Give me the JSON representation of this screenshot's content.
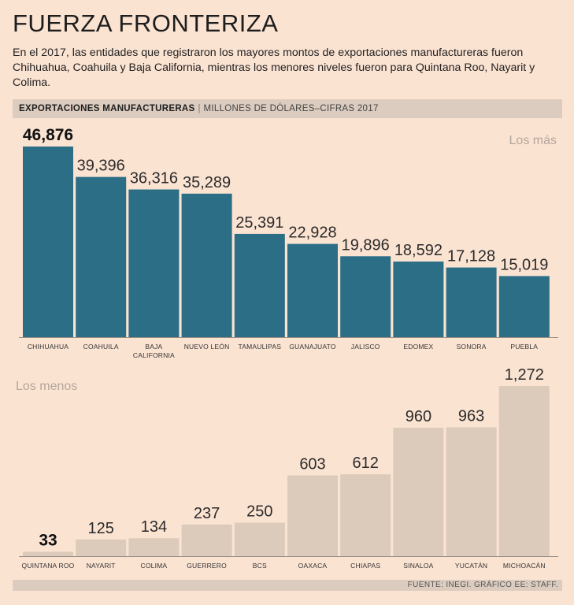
{
  "title": "FUERZA FRONTERIZA",
  "subtitle": "En el 2017, las entidades que registraron los mayores montos de exportaciones manufactureras fueron Chihuahua, Coahuila y Baja California, mientras los menores niveles fueron para Quintana Roo, Nayarit y Colima.",
  "header": {
    "bold": "EXPORTACIONES MANUFACTURERAS",
    "separator": "|",
    "unit": "MILLONES DE DÓLARES–CIFRAS 2017"
  },
  "source": "FUENTE: INEGI. GRÁFICO EE: STAFF.",
  "colors": {
    "top_bars": "#2b6e86",
    "bottom_bars": "#dccbba",
    "background": "#fbe3d2"
  },
  "chart_data": [
    {
      "type": "bar",
      "title": "Los más",
      "categories": [
        "CHIHUAHUA",
        "COAHUILA",
        "BAJA CALIFORNIA",
        "NUEVO LEÓN",
        "TAMAULIPAS",
        "GUANAJUATO",
        "JALISCO",
        "EDOMEX",
        "SONORA",
        "PUEBLA"
      ],
      "category_lines": [
        [
          "CHIHUAHUA"
        ],
        [
          "COAHUILA"
        ],
        [
          "BAJA",
          "CALIFORNIA"
        ],
        [
          "NUEVO LEÓN"
        ],
        [
          "TAMAULIPAS"
        ],
        [
          "GUANAJUATO"
        ],
        [
          "JALISCO"
        ],
        [
          "EDOMEX"
        ],
        [
          "SONORA"
        ],
        [
          "PUEBLA"
        ]
      ],
      "values": [
        46876,
        39396,
        36316,
        35289,
        25391,
        22928,
        19896,
        18592,
        17128,
        15019
      ],
      "labels": [
        "46,876",
        "39,396",
        "36,316",
        "35,289",
        "25,391",
        "22,928",
        "19,896",
        "18,592",
        "17,128",
        "15,019"
      ],
      "highlight_index": 0,
      "ylim": [
        0,
        46876
      ]
    },
    {
      "type": "bar",
      "title": "Los menos",
      "categories": [
        "QUINTANA ROO",
        "NAYARIT",
        "COLIMA",
        "GUERRERO",
        "BCS",
        "OAXACA",
        "CHIAPAS",
        "SINALOA",
        "YUCATÁN",
        "MICHOACÁN"
      ],
      "category_lines": [
        [
          "QUINTANA ROO"
        ],
        [
          "NAYARIT"
        ],
        [
          "COLIMA"
        ],
        [
          "GUERRERO"
        ],
        [
          "BCS"
        ],
        [
          "OAXACA"
        ],
        [
          "CHIAPAS"
        ],
        [
          "SINALOA"
        ],
        [
          "YUCATÁN"
        ],
        [
          "MICHOACÁN"
        ]
      ],
      "values": [
        33,
        125,
        134,
        237,
        250,
        603,
        612,
        960,
        963,
        1272
      ],
      "labels": [
        "33",
        "125",
        "134",
        "237",
        "250",
        "603",
        "612",
        "960",
        "963",
        "1,272"
      ],
      "highlight_index": 0,
      "ylim": [
        0,
        1272
      ]
    }
  ]
}
